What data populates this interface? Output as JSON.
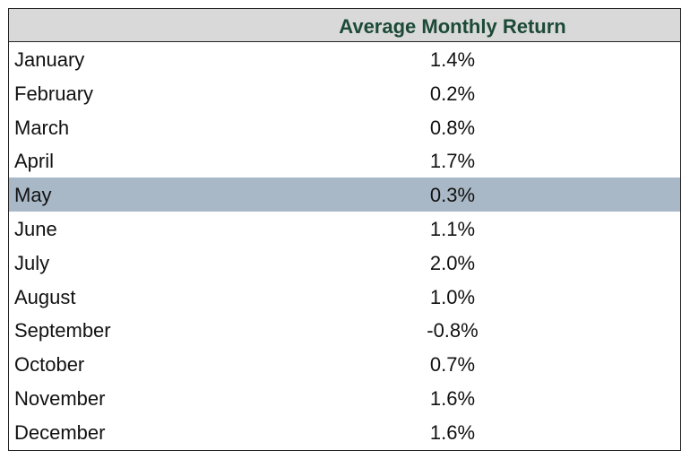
{
  "chart_data": {
    "type": "table",
    "title": "",
    "columns": [
      "",
      "Average Monthly Return"
    ],
    "highlight_color": "#a9b8c6",
    "header_text_color": "#1c4a37",
    "header_bg_color": "#d9d9d9",
    "rows": [
      {
        "month": "January",
        "value_label": "1.4%",
        "value": 1.4,
        "highlighted": false
      },
      {
        "month": "February",
        "value_label": "0.2%",
        "value": 0.2,
        "highlighted": false
      },
      {
        "month": "March",
        "value_label": "0.8%",
        "value": 0.8,
        "highlighted": false
      },
      {
        "month": "April",
        "value_label": "1.7%",
        "value": 1.7,
        "highlighted": false
      },
      {
        "month": "May",
        "value_label": "0.3%",
        "value": 0.3,
        "highlighted": true
      },
      {
        "month": "June",
        "value_label": "1.1%",
        "value": 1.1,
        "highlighted": false
      },
      {
        "month": "July",
        "value_label": "2.0%",
        "value": 2.0,
        "highlighted": false
      },
      {
        "month": "August",
        "value_label": "1.0%",
        "value": 1.0,
        "highlighted": false
      },
      {
        "month": "September",
        "value_label": "-0.8%",
        "value": -0.8,
        "highlighted": false
      },
      {
        "month": "October",
        "value_label": "0.7%",
        "value": 0.7,
        "highlighted": false
      },
      {
        "month": "November",
        "value_label": "1.6%",
        "value": 1.6,
        "highlighted": false
      },
      {
        "month": "December",
        "value_label": "1.6%",
        "value": 1.6,
        "highlighted": false
      }
    ]
  }
}
